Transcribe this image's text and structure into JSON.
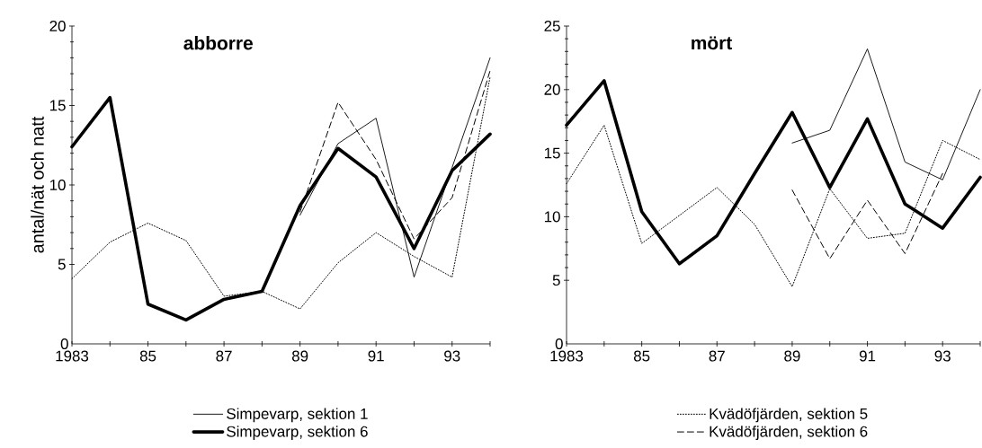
{
  "chart_data": [
    {
      "type": "line",
      "title": "abborre",
      "ylabel": "antal/nät och natt",
      "x": [
        1983,
        1984,
        1985,
        1986,
        1987,
        1988,
        1989,
        1990,
        1991,
        1992,
        1993,
        1994
      ],
      "xlim": [
        1983,
        1994
      ],
      "ylim": [
        0,
        20
      ],
      "xticks": [
        {
          "value": 1983,
          "label": "1983"
        },
        {
          "value": 1984,
          "label": null
        },
        {
          "value": 1985,
          "label": "85"
        },
        {
          "value": 1986,
          "label": null
        },
        {
          "value": 1987,
          "label": "87"
        },
        {
          "value": 1988,
          "label": null
        },
        {
          "value": 1989,
          "label": "89"
        },
        {
          "value": 1990,
          "label": null
        },
        {
          "value": 1991,
          "label": "91"
        },
        {
          "value": 1992,
          "label": null
        },
        {
          "value": 1993,
          "label": "93"
        },
        {
          "value": 1994,
          "label": null
        }
      ],
      "yticks": [
        0,
        5,
        10,
        15,
        20
      ],
      "grid": false,
      "legend": "bottom",
      "marker": "none",
      "series": [
        {
          "name": "Simpevarp, sektion 1",
          "color": "#000000",
          "line_style": "solid",
          "values": [
            null,
            null,
            null,
            null,
            null,
            null,
            8.1,
            12.6,
            14.2,
            4.2,
            11.1,
            18.0
          ]
        },
        {
          "name": "Simpevarp, sektion 6",
          "color": "#000000",
          "line_style": "solid",
          "values": [
            12.4,
            15.5,
            2.5,
            1.5,
            2.8,
            3.3,
            8.7,
            12.3,
            10.5,
            6.0,
            10.9,
            13.2
          ]
        },
        {
          "color": "#000000",
          "line_style": "dotted",
          "values": [
            4.1,
            6.4,
            7.6,
            6.5,
            3.0,
            3.3,
            2.2,
            5.1,
            7.0,
            5.5,
            4.2,
            16.8
          ]
        },
        {
          "color": "#000000",
          "line_style": "dashed",
          "values": [
            null,
            null,
            null,
            null,
            null,
            null,
            8.3,
            15.2,
            11.6,
            6.6,
            9.2,
            17.2
          ]
        }
      ]
    },
    {
      "type": "line",
      "title": "mört",
      "x": [
        1983,
        1984,
        1985,
        1986,
        1987,
        1988,
        1989,
        1990,
        1991,
        1992,
        1993,
        1994
      ],
      "xlim": [
        1983,
        1994
      ],
      "ylim": [
        0,
        25
      ],
      "xticks": [
        {
          "value": 1983,
          "label": "1983"
        },
        {
          "value": 1984,
          "label": null
        },
        {
          "value": 1985,
          "label": "85"
        },
        {
          "value": 1986,
          "label": null
        },
        {
          "value": 1987,
          "label": "87"
        },
        {
          "value": 1988,
          "label": null
        },
        {
          "value": 1989,
          "label": "89"
        },
        {
          "value": 1990,
          "label": null
        },
        {
          "value": 1991,
          "label": "91"
        },
        {
          "value": 1992,
          "label": null
        },
        {
          "value": 1993,
          "label": "93"
        },
        {
          "value": 1994,
          "label": null
        }
      ],
      "yticks": [
        0,
        5,
        10,
        15,
        20,
        25
      ],
      "grid": false,
      "legend": "bottom",
      "marker": "none",
      "series": [
        {
          "color": "#000000",
          "line_style": "solid",
          "values": [
            null,
            null,
            null,
            null,
            null,
            null,
            15.8,
            16.8,
            23.2,
            14.3,
            12.9,
            20.0
          ]
        },
        {
          "color": "#000000",
          "line_style": "solid",
          "values": [
            17.2,
            20.7,
            10.4,
            6.3,
            8.5,
            13.4,
            18.2,
            12.3,
            17.7,
            11.0,
            9.1,
            13.1
          ]
        },
        {
          "name": "Kvädöfjärden, sektion 5",
          "color": "#000000",
          "line_style": "dotted",
          "values": [
            12.6,
            17.2,
            7.9,
            10.1,
            12.3,
            9.4,
            4.5,
            12.2,
            8.3,
            8.7,
            16.0,
            14.5
          ]
        },
        {
          "name": "Kvädöfjärden, sektion 6",
          "color": "#000000",
          "line_style": "dashed",
          "values": [
            null,
            null,
            null,
            null,
            null,
            null,
            12.1,
            6.7,
            11.3,
            7.1,
            13.4,
            null
          ]
        }
      ]
    }
  ]
}
